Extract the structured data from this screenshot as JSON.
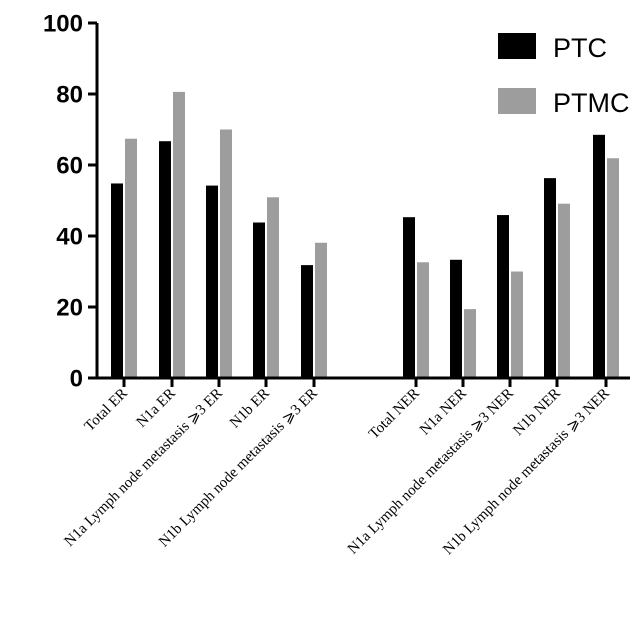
{
  "chart_data": {
    "type": "bar",
    "categories": [
      "Total ER",
      "N1a ER",
      "N1a Lymph node metastasis ⩾3 ER",
      "N1b ER",
      "N1b Lymph node metastasis ⩾3 ER",
      "Total NER",
      "N1a NER",
      "N1a Lymph node metastasis ⩾3 NER",
      "N1b NER",
      "N1b Lymph node metastasis ⩾3 NER"
    ],
    "series": [
      {
        "name": "PTC",
        "color": "#000000",
        "values": [
          54.8,
          66.7,
          54.2,
          43.8,
          31.8,
          45.3,
          33.3,
          45.9,
          56.3,
          68.5
        ]
      },
      {
        "name": "PTMC",
        "color": "#9d9d9d",
        "values": [
          67.4,
          80.6,
          70.0,
          50.9,
          38.1,
          32.6,
          19.4,
          30.0,
          49.1,
          61.9
        ]
      }
    ],
    "ylim": [
      0,
      100
    ],
    "yticks": [
      "0",
      "20",
      "40",
      "60",
      "80",
      "100"
    ],
    "title": "",
    "xlabel": "",
    "ylabel": "",
    "legend": "top-right",
    "grid": false
  }
}
